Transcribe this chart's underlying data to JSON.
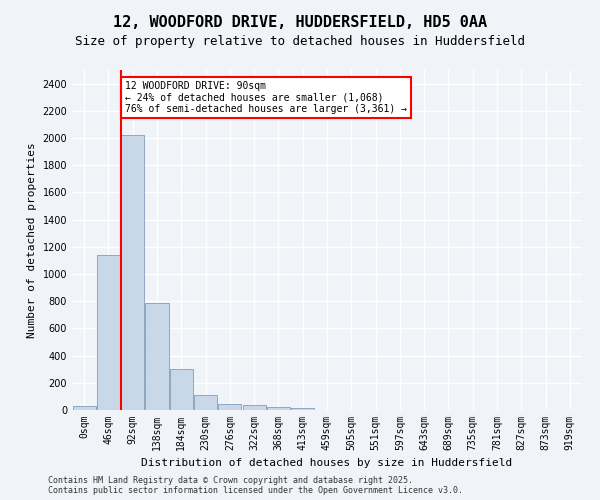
{
  "title1": "12, WOODFORD DRIVE, HUDDERSFIELD, HD5 0AA",
  "title2": "Size of property relative to detached houses in Huddersfield",
  "xlabel": "Distribution of detached houses by size in Huddersfield",
  "ylabel": "Number of detached properties",
  "bin_labels": [
    "0sqm",
    "46sqm",
    "92sqm",
    "138sqm",
    "184sqm",
    "230sqm",
    "276sqm",
    "322sqm",
    "368sqm",
    "413sqm",
    "459sqm",
    "505sqm",
    "551sqm",
    "597sqm",
    "643sqm",
    "689sqm",
    "735sqm",
    "781sqm",
    "827sqm",
    "873sqm",
    "919sqm"
  ],
  "bar_values": [
    30,
    1140,
    2020,
    790,
    305,
    107,
    47,
    40,
    20,
    15,
    0,
    0,
    0,
    0,
    0,
    0,
    0,
    0,
    0,
    0,
    0
  ],
  "bar_color": "#c8d8e8",
  "bar_edge_color": "#7090b0",
  "property_line_x": 2,
  "property_line_color": "red",
  "annotation_text": "12 WOODFORD DRIVE: 90sqm\n← 24% of detached houses are smaller (1,068)\n76% of semi-detached houses are larger (3,361) →",
  "annotation_box_color": "white",
  "annotation_box_edge": "red",
  "ylim": [
    0,
    2500
  ],
  "yticks": [
    0,
    200,
    400,
    600,
    800,
    1000,
    1200,
    1400,
    1600,
    1800,
    2000,
    2200,
    2400
  ],
  "bg_color": "#f0f4f8",
  "plot_bg_color": "#f0f4f8",
  "grid_color": "#ffffff",
  "footer_text": "Contains HM Land Registry data © Crown copyright and database right 2025.\nContains public sector information licensed under the Open Government Licence v3.0.",
  "title1_fontsize": 11,
  "title2_fontsize": 9,
  "xlabel_fontsize": 8,
  "ylabel_fontsize": 8,
  "tick_fontsize": 7,
  "annotation_fontsize": 7,
  "footer_fontsize": 6
}
